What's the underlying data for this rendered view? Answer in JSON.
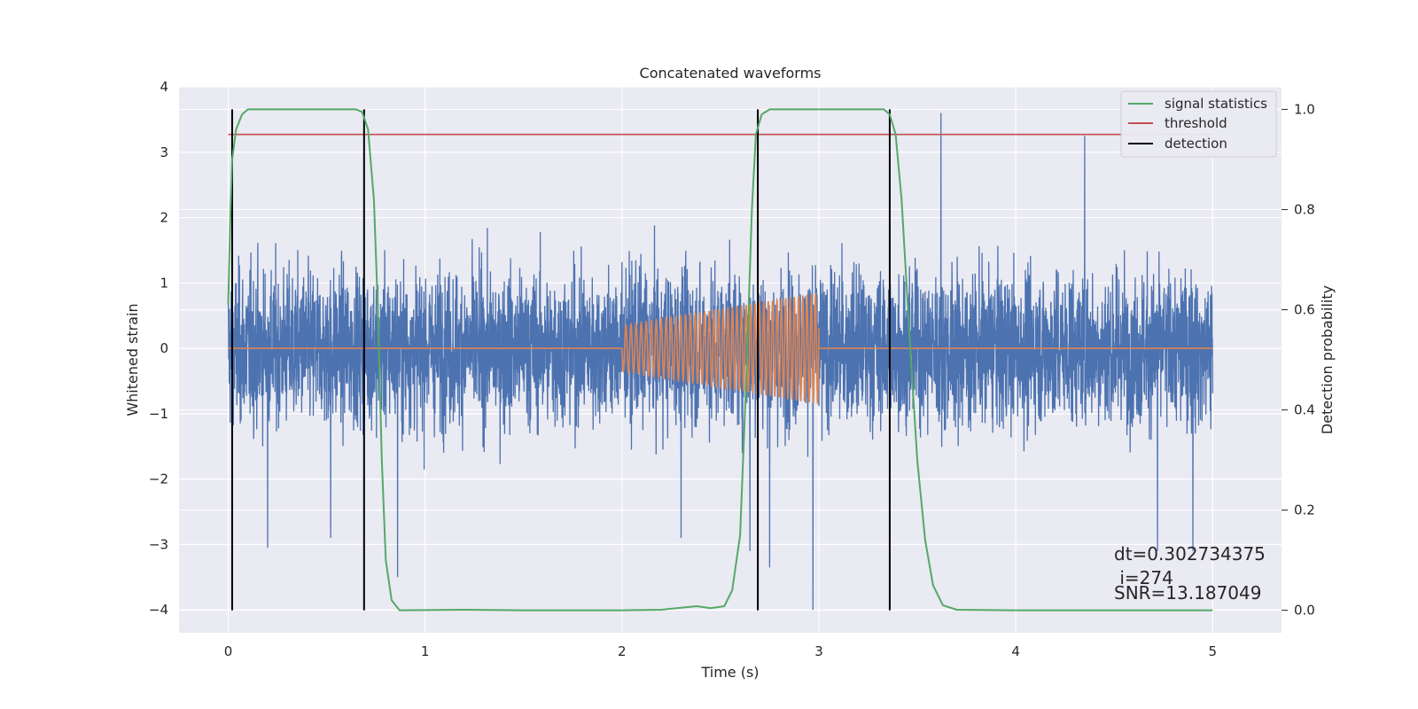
{
  "chart_data": {
    "type": "line",
    "title": "Concatenated waveforms",
    "xlabel": "Time (s)",
    "ylabel": "Whitened strain",
    "y2label": "Detection probability",
    "xlim": [
      -0.25,
      5.35
    ],
    "ylim": [
      -4.35,
      4.0
    ],
    "y2lim": [
      -0.045,
      1.045
    ],
    "xticks": [
      0,
      1,
      2,
      3,
      4,
      5
    ],
    "xtick_labels": [
      "0",
      "1",
      "2",
      "3",
      "4",
      "5"
    ],
    "yticks": [
      -4,
      -3,
      -2,
      -1,
      0,
      1,
      2,
      3,
      4
    ],
    "ytick_labels": [
      "−4",
      "−3",
      "−2",
      "−1",
      "0",
      "1",
      "2",
      "3",
      "4"
    ],
    "y2ticks": [
      0.0,
      0.2,
      0.4,
      0.6,
      0.8,
      1.0
    ],
    "y2tick_labels": [
      "0.0",
      "0.2",
      "0.4",
      "0.6",
      "0.8",
      "1.0"
    ],
    "grid": true,
    "legend_position": "top-right",
    "series": [
      {
        "name": "whitened strain",
        "color": "#4c72b0",
        "axis": "left",
        "kind": "noise",
        "x_range": [
          0,
          5
        ],
        "typical_amplitude": 1.6,
        "peak_values": [
          {
            "x": 0.02,
            "y": -2.4
          },
          {
            "x": 0.2,
            "y": -3.05
          },
          {
            "x": 0.52,
            "y": -2.9
          },
          {
            "x": 0.86,
            "y": -3.5
          },
          {
            "x": 2.3,
            "y": -2.9
          },
          {
            "x": 2.65,
            "y": -3.1
          },
          {
            "x": 2.75,
            "y": -3.35
          },
          {
            "x": 2.97,
            "y": -4.0
          },
          {
            "x": 3.62,
            "y": 3.6
          },
          {
            "x": 4.35,
            "y": 3.25
          },
          {
            "x": 4.72,
            "y": -3.1
          },
          {
            "x": 4.9,
            "y": -3.1
          }
        ]
      },
      {
        "name": "injected waveform",
        "color": "#dd8452",
        "axis": "left",
        "kind": "chirp",
        "start": 2.0,
        "end": 3.0,
        "amplitude_start": 0.35,
        "amplitude_end": 0.85,
        "cycles": 38
      },
      {
        "name": "signal statistics",
        "color": "#55a868",
        "axis": "right",
        "points": [
          [
            0.0,
            0.61
          ],
          [
            0.01,
            0.78
          ],
          [
            0.02,
            0.9
          ],
          [
            0.04,
            0.96
          ],
          [
            0.07,
            0.99
          ],
          [
            0.1,
            1.0
          ],
          [
            0.65,
            1.0
          ],
          [
            0.68,
            0.995
          ],
          [
            0.71,
            0.96
          ],
          [
            0.74,
            0.82
          ],
          [
            0.76,
            0.6
          ],
          [
            0.78,
            0.3
          ],
          [
            0.8,
            0.1
          ],
          [
            0.83,
            0.02
          ],
          [
            0.87,
            0.0
          ],
          [
            1.2,
            0.001
          ],
          [
            1.5,
            0.0
          ],
          [
            2.0,
            0.0
          ],
          [
            2.2,
            0.001
          ],
          [
            2.3,
            0.005
          ],
          [
            2.38,
            0.008
          ],
          [
            2.45,
            0.004
          ],
          [
            2.52,
            0.008
          ],
          [
            2.56,
            0.04
          ],
          [
            2.6,
            0.15
          ],
          [
            2.63,
            0.45
          ],
          [
            2.66,
            0.8
          ],
          [
            2.68,
            0.95
          ],
          [
            2.71,
            0.99
          ],
          [
            2.75,
            1.0
          ],
          [
            3.33,
            1.0
          ],
          [
            3.36,
            0.99
          ],
          [
            3.39,
            0.95
          ],
          [
            3.42,
            0.82
          ],
          [
            3.46,
            0.55
          ],
          [
            3.5,
            0.3
          ],
          [
            3.54,
            0.14
          ],
          [
            3.58,
            0.05
          ],
          [
            3.63,
            0.01
          ],
          [
            3.7,
            0.001
          ],
          [
            4.0,
            0.0
          ],
          [
            5.0,
            0.0
          ]
        ]
      },
      {
        "name": "threshold",
        "color": "#c44e52",
        "axis": "right",
        "points": [
          [
            0.0,
            0.95
          ],
          [
            5.0,
            0.95
          ]
        ]
      }
    ],
    "detections": {
      "name": "detection",
      "color": "#000000",
      "x": [
        0.02,
        0.69,
        2.69,
        3.36
      ]
    },
    "legend": [
      {
        "label": "signal statistics",
        "color": "#55a868"
      },
      {
        "label": "threshold",
        "color": "#c44e52"
      },
      {
        "label": "detection",
        "color": "#000000"
      }
    ],
    "annotations": [
      {
        "text": "dt=0.302734375"
      },
      {
        "text": " i=274"
      },
      {
        "text": "SNR=13.187049"
      }
    ]
  }
}
